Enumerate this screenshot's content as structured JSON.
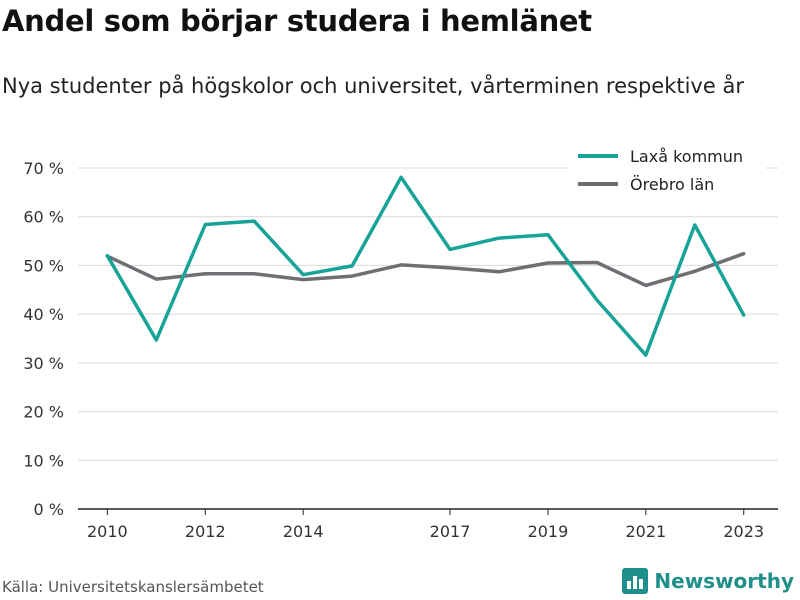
{
  "title": "Andel som börjar studera i hemlänet",
  "subtitle": "Nya studenter på högskolor och universitet, vårterminen respektive år",
  "source": "Källa: Universitetskanslersämbetet",
  "brand": {
    "name": "Newsworthy",
    "icon": "bar-chart-logo-icon",
    "color": "#1f8f8a"
  },
  "chart_data": {
    "type": "line",
    "x": [
      2010,
      2011,
      2012,
      2013,
      2014,
      2015,
      2016,
      2017,
      2018,
      2019,
      2020,
      2021,
      2022,
      2023
    ],
    "xticks": [
      "2010",
      "2012",
      "2014",
      "2017",
      "2019",
      "2021",
      "2023"
    ],
    "xtick_values": [
      2010,
      2012,
      2014,
      2017,
      2019,
      2021,
      2023
    ],
    "xlim": [
      2009.4,
      2023.7
    ],
    "ylim": [
      0,
      70
    ],
    "yticks": [
      0,
      10,
      20,
      30,
      40,
      50,
      60,
      70
    ],
    "ytick_labels": [
      "0 %",
      "10 %",
      "20 %",
      "30 %",
      "40 %",
      "50 %",
      "60 %",
      "70 %"
    ],
    "grid": true,
    "legend_position": "top-right",
    "series": [
      {
        "name": "Laxå kommun",
        "color": "#17a398",
        "values": [
          52,
          34.7,
          58.4,
          59.1,
          48.1,
          49.9,
          68.1,
          53.3,
          55.6,
          56.3,
          42.9,
          31.6,
          58.3,
          39.8
        ]
      },
      {
        "name": "Örebro län",
        "color": "#6f6e74",
        "values": [
          51.9,
          47.2,
          48.3,
          48.3,
          47.1,
          47.8,
          50.1,
          49.5,
          48.7,
          50.5,
          50.6,
          45.9,
          48.8,
          52.4
        ]
      }
    ]
  }
}
